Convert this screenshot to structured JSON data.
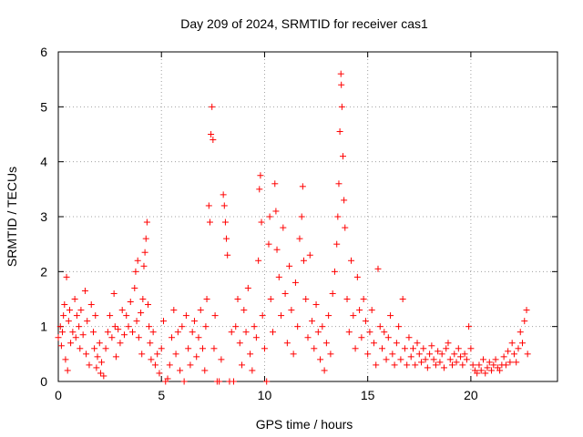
{
  "chart_data": {
    "type": "scatter",
    "title": "Day 209 of 2024, SRMTID for receiver cas1",
    "xlabel": "GPS time / hours",
    "ylabel": "SRMTID / TECUs",
    "xlim": [
      0,
      24.2
    ],
    "ylim": [
      0,
      6
    ],
    "x_ticks": [
      0,
      5,
      10,
      15,
      20
    ],
    "y_ticks": [
      0,
      1,
      2,
      3,
      4,
      5,
      6
    ],
    "x_tick_labels": [
      "0",
      "5",
      "10",
      "15",
      "20"
    ],
    "y_tick_labels": [
      "0",
      "1",
      "2",
      "3",
      "4",
      "5",
      "6"
    ],
    "grid": true,
    "marker": "+",
    "color": "#ff0000",
    "series": [
      {
        "name": "SRMTID",
        "points": [
          [
            0.0,
            0.8
          ],
          [
            0.1,
            1.0
          ],
          [
            0.15,
            0.65
          ],
          [
            0.2,
            0.9
          ],
          [
            0.25,
            1.2
          ],
          [
            0.3,
            1.4
          ],
          [
            0.35,
            0.4
          ],
          [
            0.4,
            1.9
          ],
          [
            0.45,
            0.2
          ],
          [
            0.5,
            1.1
          ],
          [
            0.55,
            1.3
          ],
          [
            0.6,
            0.7
          ],
          [
            0.7,
            0.9
          ],
          [
            0.8,
            1.5
          ],
          [
            0.85,
            0.8
          ],
          [
            0.9,
            1.2
          ],
          [
            1.0,
            1.0
          ],
          [
            1.05,
            0.6
          ],
          [
            1.1,
            1.3
          ],
          [
            1.2,
            0.85
          ],
          [
            1.3,
            1.65
          ],
          [
            1.35,
            0.5
          ],
          [
            1.4,
            1.1
          ],
          [
            1.5,
            0.3
          ],
          [
            1.6,
            1.4
          ],
          [
            1.7,
            0.9
          ],
          [
            1.75,
            0.6
          ],
          [
            1.8,
            1.2
          ],
          [
            1.85,
            0.25
          ],
          [
            1.9,
            0.45
          ],
          [
            2.0,
            0.7
          ],
          [
            2.05,
            0.15
          ],
          [
            2.1,
            0.35
          ],
          [
            2.2,
            0.1
          ],
          [
            2.3,
            0.6
          ],
          [
            2.4,
            0.9
          ],
          [
            2.5,
            1.2
          ],
          [
            2.6,
            0.8
          ],
          [
            2.7,
            1.6
          ],
          [
            2.75,
            1.0
          ],
          [
            2.8,
            0.45
          ],
          [
            2.9,
            0.95
          ],
          [
            3.0,
            0.7
          ],
          [
            3.1,
            1.3
          ],
          [
            3.2,
            0.85
          ],
          [
            3.3,
            1.2
          ],
          [
            3.4,
            1.0
          ],
          [
            3.5,
            1.45
          ],
          [
            3.6,
            0.9
          ],
          [
            3.7,
            1.7
          ],
          [
            3.75,
            2.0
          ],
          [
            3.8,
            1.1
          ],
          [
            3.85,
            2.2
          ],
          [
            3.9,
            0.8
          ],
          [
            4.0,
            1.25
          ],
          [
            4.05,
            0.5
          ],
          [
            4.1,
            1.5
          ],
          [
            4.15,
            2.1
          ],
          [
            4.2,
            2.35
          ],
          [
            4.25,
            2.6
          ],
          [
            4.3,
            2.9
          ],
          [
            4.35,
            1.4
          ],
          [
            4.4,
            1.0
          ],
          [
            4.45,
            0.7
          ],
          [
            4.5,
            0.4
          ],
          [
            4.6,
            0.9
          ],
          [
            4.7,
            0.3
          ],
          [
            4.8,
            0.5
          ],
          [
            4.9,
            0.15
          ],
          [
            5.0,
            0.6
          ],
          [
            5.1,
            1.1
          ],
          [
            5.2,
            0.0
          ],
          [
            5.3,
            0.05
          ],
          [
            5.4,
            0.3
          ],
          [
            5.5,
            0.8
          ],
          [
            5.6,
            1.3
          ],
          [
            5.7,
            0.5
          ],
          [
            5.8,
            0.9
          ],
          [
            5.9,
            0.2
          ],
          [
            6.0,
            1.0
          ],
          [
            6.1,
            0.0
          ],
          [
            6.2,
            1.2
          ],
          [
            6.3,
            0.6
          ],
          [
            6.4,
            0.3
          ],
          [
            6.5,
            0.9
          ],
          [
            6.6,
            1.1
          ],
          [
            6.7,
            0.45
          ],
          [
            6.8,
            0.8
          ],
          [
            6.9,
            1.3
          ],
          [
            7.0,
            0.6
          ],
          [
            7.1,
            0.2
          ],
          [
            7.15,
            1.0
          ],
          [
            7.2,
            1.5
          ],
          [
            7.3,
            3.2
          ],
          [
            7.35,
            2.9
          ],
          [
            7.4,
            4.5
          ],
          [
            7.45,
            5.0
          ],
          [
            7.5,
            4.4
          ],
          [
            7.55,
            0.6
          ],
          [
            7.6,
            1.2
          ],
          [
            7.7,
            0.0
          ],
          [
            7.8,
            0.0
          ],
          [
            7.9,
            0.4
          ],
          [
            8.0,
            3.4
          ],
          [
            8.05,
            3.2
          ],
          [
            8.1,
            2.9
          ],
          [
            8.15,
            2.6
          ],
          [
            8.2,
            2.3
          ],
          [
            8.3,
            0.0
          ],
          [
            8.4,
            0.9
          ],
          [
            8.5,
            0.0
          ],
          [
            8.6,
            1.0
          ],
          [
            8.7,
            1.5
          ],
          [
            8.8,
            0.7
          ],
          [
            8.9,
            0.3
          ],
          [
            9.0,
            1.3
          ],
          [
            9.1,
            0.9
          ],
          [
            9.2,
            1.7
          ],
          [
            9.3,
            0.5
          ],
          [
            9.4,
            0.2
          ],
          [
            9.5,
            1.0
          ],
          [
            9.6,
            0.8
          ],
          [
            9.7,
            2.2
          ],
          [
            9.75,
            3.5
          ],
          [
            9.8,
            3.75
          ],
          [
            9.85,
            2.9
          ],
          [
            9.9,
            1.2
          ],
          [
            10.0,
            0.6
          ],
          [
            10.1,
            0.0
          ],
          [
            10.2,
            2.5
          ],
          [
            10.25,
            3.0
          ],
          [
            10.3,
            1.5
          ],
          [
            10.4,
            0.9
          ],
          [
            10.5,
            3.6
          ],
          [
            10.55,
            3.1
          ],
          [
            10.6,
            2.4
          ],
          [
            10.7,
            1.9
          ],
          [
            10.8,
            1.2
          ],
          [
            10.9,
            2.8
          ],
          [
            11.0,
            1.6
          ],
          [
            11.1,
            0.7
          ],
          [
            11.2,
            2.1
          ],
          [
            11.3,
            1.3
          ],
          [
            11.4,
            0.5
          ],
          [
            11.5,
            1.8
          ],
          [
            11.6,
            1.0
          ],
          [
            11.7,
            2.6
          ],
          [
            11.8,
            3.0
          ],
          [
            11.85,
            3.55
          ],
          [
            11.9,
            2.2
          ],
          [
            12.0,
            1.5
          ],
          [
            12.1,
            0.8
          ],
          [
            12.2,
            2.3
          ],
          [
            12.3,
            1.1
          ],
          [
            12.4,
            0.6
          ],
          [
            12.5,
            1.4
          ],
          [
            12.6,
            0.9
          ],
          [
            12.7,
            0.4
          ],
          [
            12.8,
            1.0
          ],
          [
            12.9,
            0.2
          ],
          [
            13.0,
            0.7
          ],
          [
            13.1,
            1.2
          ],
          [
            13.2,
            0.5
          ],
          [
            13.3,
            1.6
          ],
          [
            13.4,
            2.0
          ],
          [
            13.5,
            2.5
          ],
          [
            13.55,
            3.0
          ],
          [
            13.6,
            3.6
          ],
          [
            13.65,
            4.55
          ],
          [
            13.7,
            5.6
          ],
          [
            13.72,
            5.4
          ],
          [
            13.75,
            5.0
          ],
          [
            13.8,
            4.1
          ],
          [
            13.85,
            3.3
          ],
          [
            13.9,
            2.8
          ],
          [
            14.0,
            1.5
          ],
          [
            14.1,
            0.9
          ],
          [
            14.2,
            2.2
          ],
          [
            14.3,
            1.2
          ],
          [
            14.4,
            0.6
          ],
          [
            14.5,
            1.9
          ],
          [
            14.6,
            1.3
          ],
          [
            14.7,
            0.8
          ],
          [
            14.8,
            1.5
          ],
          [
            14.9,
            1.1
          ],
          [
            15.0,
            0.5
          ],
          [
            15.1,
            0.9
          ],
          [
            15.2,
            1.3
          ],
          [
            15.3,
            0.7
          ],
          [
            15.4,
            0.3
          ],
          [
            15.5,
            2.05
          ],
          [
            15.6,
            1.0
          ],
          [
            15.7,
            0.6
          ],
          [
            15.8,
            0.9
          ],
          [
            15.9,
            0.4
          ],
          [
            16.0,
            0.8
          ],
          [
            16.1,
            1.2
          ],
          [
            16.2,
            0.5
          ],
          [
            16.3,
            0.3
          ],
          [
            16.4,
            0.7
          ],
          [
            16.5,
            1.0
          ],
          [
            16.6,
            0.4
          ],
          [
            16.7,
            1.5
          ],
          [
            16.8,
            0.6
          ],
          [
            16.9,
            0.3
          ],
          [
            17.0,
            0.8
          ],
          [
            17.1,
            0.45
          ],
          [
            17.2,
            0.6
          ],
          [
            17.3,
            0.3
          ],
          [
            17.4,
            0.7
          ],
          [
            17.5,
            0.5
          ],
          [
            17.6,
            0.35
          ],
          [
            17.7,
            0.6
          ],
          [
            17.8,
            0.4
          ],
          [
            17.9,
            0.25
          ],
          [
            18.0,
            0.5
          ],
          [
            18.1,
            0.65
          ],
          [
            18.2,
            0.4
          ],
          [
            18.3,
            0.3
          ],
          [
            18.4,
            0.55
          ],
          [
            18.5,
            0.35
          ],
          [
            18.6,
            0.5
          ],
          [
            18.7,
            0.25
          ],
          [
            18.8,
            0.6
          ],
          [
            18.9,
            0.7
          ],
          [
            19.0,
            0.4
          ],
          [
            19.1,
            0.3
          ],
          [
            19.2,
            0.5
          ],
          [
            19.3,
            0.35
          ],
          [
            19.4,
            0.6
          ],
          [
            19.5,
            0.45
          ],
          [
            19.6,
            0.3
          ],
          [
            19.7,
            0.5
          ],
          [
            19.8,
            0.4
          ],
          [
            19.9,
            1.0
          ],
          [
            20.0,
            0.6
          ],
          [
            20.1,
            0.3
          ],
          [
            20.2,
            0.2
          ],
          [
            20.3,
            0.15
          ],
          [
            20.4,
            0.3
          ],
          [
            20.5,
            0.2
          ],
          [
            20.6,
            0.4
          ],
          [
            20.7,
            0.15
          ],
          [
            20.8,
            0.25
          ],
          [
            20.9,
            0.35
          ],
          [
            21.0,
            0.2
          ],
          [
            21.1,
            0.3
          ],
          [
            21.2,
            0.4
          ],
          [
            21.3,
            0.25
          ],
          [
            21.4,
            0.2
          ],
          [
            21.5,
            0.3
          ],
          [
            21.6,
            0.45
          ],
          [
            21.7,
            0.3
          ],
          [
            21.8,
            0.55
          ],
          [
            21.9,
            0.35
          ],
          [
            22.0,
            0.7
          ],
          [
            22.1,
            0.5
          ],
          [
            22.2,
            0.35
          ],
          [
            22.3,
            0.6
          ],
          [
            22.4,
            0.9
          ],
          [
            22.5,
            0.7
          ],
          [
            22.6,
            1.1
          ],
          [
            22.7,
            1.3
          ],
          [
            22.75,
            0.5
          ]
        ]
      }
    ]
  }
}
